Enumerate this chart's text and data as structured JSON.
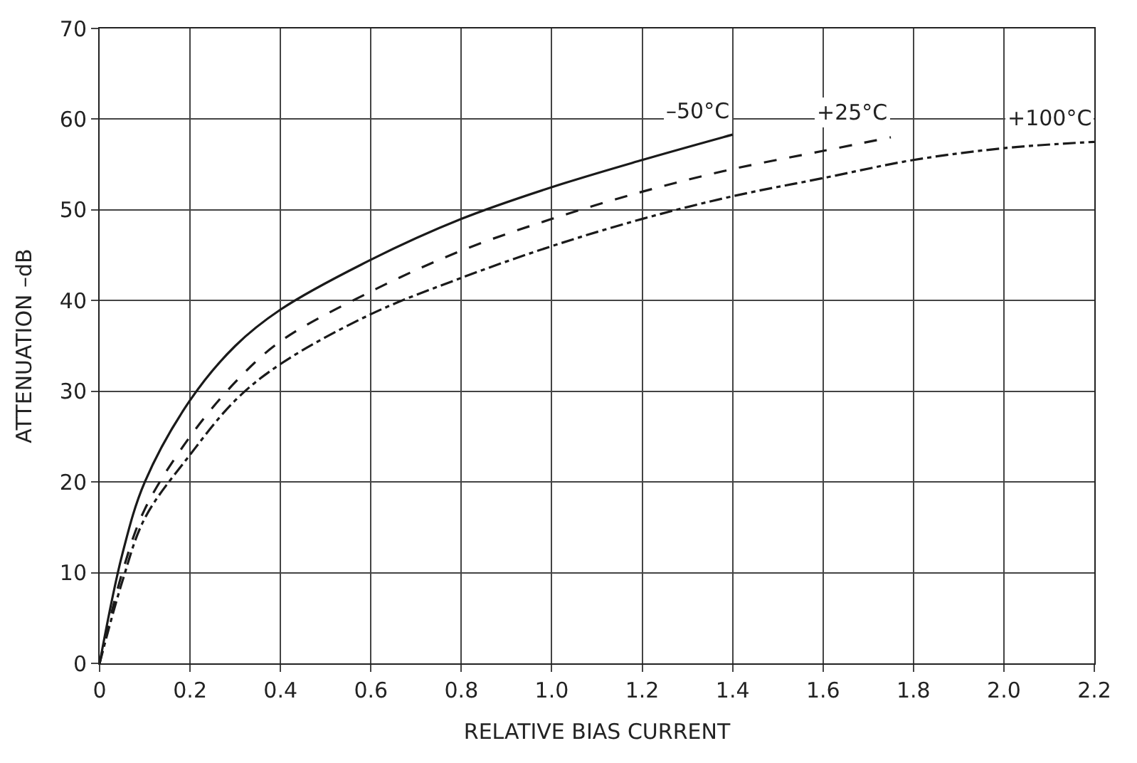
{
  "chart_data": {
    "type": "line",
    "xlabel": "RELATIVE BIAS CURRENT",
    "ylabel": "ATTENUATION –dB",
    "xlim": [
      0,
      2.2
    ],
    "ylim": [
      0,
      70
    ],
    "xticks": [
      0,
      0.2,
      0.4,
      0.6,
      0.8,
      {
        "value": 1.0,
        "label": "1.0"
      },
      1.2,
      1.4,
      1.6,
      1.8,
      {
        "value": 2.0,
        "label": "2.0"
      },
      2.2
    ],
    "yticks": [
      0,
      10,
      20,
      30,
      40,
      50,
      60,
      70
    ],
    "grid": true,
    "legend": false,
    "marker": "none",
    "series": [
      {
        "name": "–50°C",
        "color": "#1a1a1a",
        "line_style": "solid",
        "x": [
          0,
          0.05,
          0.1,
          0.2,
          0.3,
          0.4,
          0.6,
          0.8,
          1.0,
          1.2,
          1.4
        ],
        "values": [
          0,
          12,
          20,
          29,
          35,
          39,
          44.5,
          49,
          52.5,
          55.5,
          58.3
        ]
      },
      {
        "name": "+25°C",
        "color": "#1a1a1a",
        "line_style": "dashed",
        "x": [
          0,
          0.05,
          0.1,
          0.2,
          0.3,
          0.4,
          0.6,
          0.8,
          1.0,
          1.2,
          1.4,
          1.6,
          1.75
        ],
        "values": [
          0,
          10,
          17,
          25,
          31,
          35.5,
          41,
          45.5,
          49,
          52,
          54.5,
          56.5,
          58
        ]
      },
      {
        "name": "+100°C",
        "color": "#1a1a1a",
        "line_style": "dashdot",
        "x": [
          0,
          0.05,
          0.1,
          0.2,
          0.3,
          0.4,
          0.6,
          0.8,
          1.0,
          1.2,
          1.4,
          1.6,
          1.8,
          2.0,
          2.2
        ],
        "values": [
          0,
          9,
          16,
          23,
          29,
          33,
          38.5,
          42.5,
          46,
          49,
          51.5,
          53.5,
          55.5,
          56.8,
          57.5
        ]
      }
    ]
  }
}
